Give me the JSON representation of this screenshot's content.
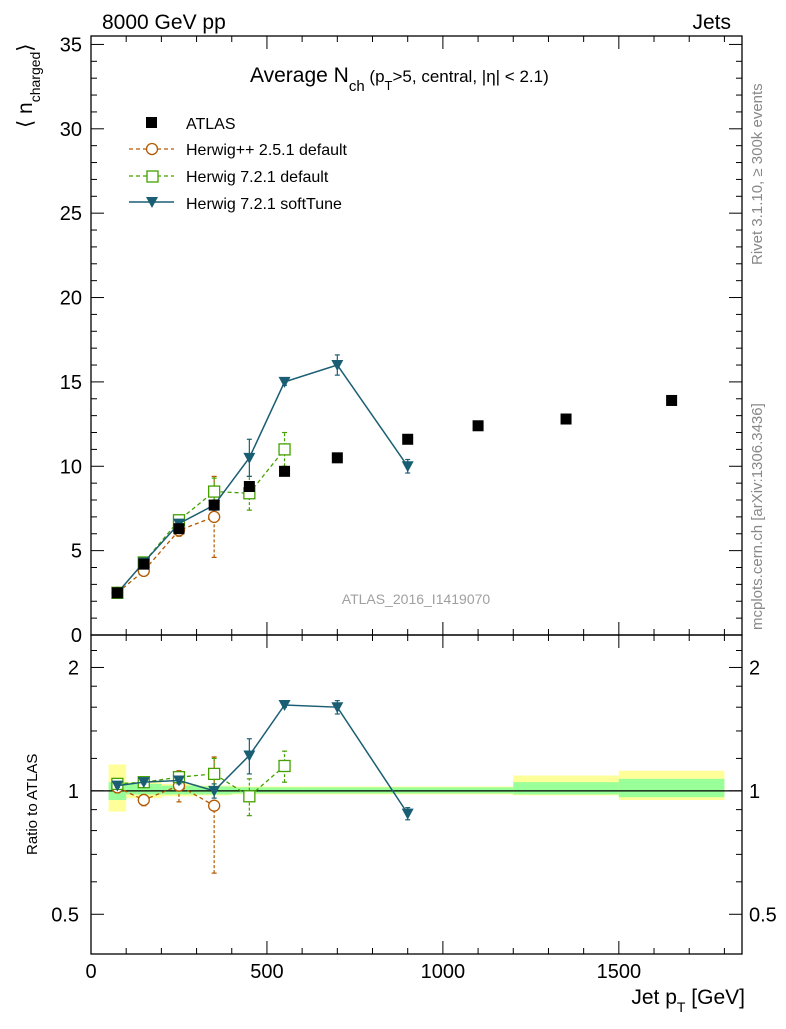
{
  "header": {
    "left": "8000 GeV pp",
    "right": "Jets"
  },
  "side": {
    "rivet": "Rivet 3.1.10, ≥ 300k events",
    "mcplots": "mcplots.cern.ch [arXiv:1306.3436]"
  },
  "plot": {
    "title_main": "Average N",
    "title_sub": "ch",
    "title_rest": " (p",
    "title_sub2": "T",
    "title_tail": ">5, central, |η| < 2.1)",
    "watermark": "ATLAS_2016_I1419070",
    "ylabel_main": "⟨ n",
    "ylabel_sub": "charged",
    "ylabel_close": "⟩",
    "ratio_ylabel": "Ratio to ATLAS",
    "xlabel_main": "Jet p",
    "xlabel_sub": "T",
    "xlabel_unit": " [GeV]"
  },
  "colors": {
    "data": "#000000",
    "herwigpp": "#b35900",
    "herwig721": "#44a000",
    "softtune": "#1a5e73",
    "band_inner": "#99ff99",
    "band_outer": "#ffff99"
  },
  "chart_data": [
    {
      "type": "scatter",
      "panel": "main",
      "title": "Average N_ch (p_T>5, central, |η| < 2.1)",
      "xlabel": "Jet p_T [GeV]",
      "ylabel": "⟨ n_charged ⟩",
      "xlim": [
        0,
        1850
      ],
      "ylim": [
        0,
        35.5
      ],
      "x_ticks": [
        0,
        500,
        1000,
        1500
      ],
      "y_ticks": [
        0,
        5,
        10,
        15,
        20,
        25,
        30,
        35
      ],
      "legend": "top-left",
      "series": [
        {
          "name": "ATLAS",
          "marker": "filled-square",
          "x": [
            75,
            150,
            250,
            350,
            450,
            550,
            700,
            900,
            1100,
            1350,
            1650
          ],
          "y": [
            2.5,
            4.2,
            6.3,
            7.7,
            8.8,
            9.7,
            10.5,
            11.6,
            12.4,
            12.8,
            13.9
          ]
        },
        {
          "name": "Herwig++ 2.5.1 default",
          "marker": "open-circle",
          "dashed": true,
          "x": [
            75,
            150,
            250,
            350
          ],
          "y": [
            2.5,
            3.8,
            6.2,
            7.0
          ],
          "err": [
            0.1,
            0.15,
            0.35,
            2.4
          ]
        },
        {
          "name": "Herwig 7.2.1 default",
          "marker": "open-square",
          "dashed": true,
          "x": [
            75,
            150,
            250,
            350,
            450,
            550
          ],
          "y": [
            2.5,
            4.3,
            6.8,
            8.5,
            8.4,
            11.0
          ],
          "err": [
            0.1,
            0.15,
            0.2,
            0.8,
            1.0,
            1.0
          ]
        },
        {
          "name": "Herwig 7.2.1 softTune",
          "marker": "down-triangle",
          "dashed": false,
          "x": [
            75,
            150,
            250,
            350,
            450,
            550,
            700,
            900
          ],
          "y": [
            2.5,
            4.3,
            6.6,
            7.7,
            10.5,
            15.0,
            16.0,
            10.0
          ],
          "err": [
            0.1,
            0.1,
            0.2,
            0.3,
            1.1,
            0.2,
            0.6,
            0.4
          ]
        }
      ]
    },
    {
      "type": "scatter",
      "panel": "ratio",
      "ylabel": "Ratio to ATLAS",
      "xlabel": "Jet p_T [GeV]",
      "xlim": [
        0,
        1850
      ],
      "ylim": [
        0.4,
        2.4
      ],
      "log_y": true,
      "y_ticks": [
        0.5,
        1,
        2
      ],
      "x_ticks": [
        0,
        500,
        1000,
        1500
      ],
      "bands": [
        {
          "x0": 50,
          "x1": 100,
          "inner": [
            0.95,
            1.05
          ],
          "outer": [
            0.89,
            1.16
          ]
        },
        {
          "x0": 100,
          "x1": 200,
          "inner": [
            0.98,
            1.04
          ],
          "outer": [
            0.96,
            1.05
          ]
        },
        {
          "x0": 200,
          "x1": 300,
          "inner": [
            0.98,
            1.03
          ],
          "outer": [
            0.97,
            1.04
          ]
        },
        {
          "x0": 300,
          "x1": 400,
          "inner": [
            0.98,
            1.025
          ],
          "outer": [
            0.975,
            1.03
          ]
        },
        {
          "x0": 400,
          "x1": 500,
          "inner": [
            0.985,
            1.02
          ],
          "outer": [
            0.98,
            1.025
          ]
        },
        {
          "x0": 500,
          "x1": 600,
          "inner": [
            0.985,
            1.02
          ],
          "outer": [
            0.98,
            1.025
          ]
        },
        {
          "x0": 600,
          "x1": 800,
          "inner": [
            0.985,
            1.02
          ],
          "outer": [
            0.98,
            1.025
          ]
        },
        {
          "x0": 800,
          "x1": 1000,
          "inner": [
            0.985,
            1.02
          ],
          "outer": [
            0.98,
            1.025
          ]
        },
        {
          "x0": 1000,
          "x1": 1200,
          "inner": [
            0.985,
            1.02
          ],
          "outer": [
            0.98,
            1.025
          ]
        },
        {
          "x0": 1200,
          "x1": 1500,
          "inner": [
            0.98,
            1.05
          ],
          "outer": [
            0.975,
            1.09
          ]
        },
        {
          "x0": 1500,
          "x1": 1800,
          "inner": [
            0.965,
            1.07
          ],
          "outer": [
            0.95,
            1.12
          ]
        }
      ],
      "series": [
        {
          "name": "Herwig++ 2.5.1 default",
          "marker": "open-circle",
          "dashed": true,
          "x": [
            75,
            150,
            250,
            350
          ],
          "y": [
            1.02,
            0.95,
            1.03,
            0.92
          ],
          "err": [
            0.03,
            0.03,
            0.09,
            0.29
          ]
        },
        {
          "name": "Herwig 7.2.1 default",
          "marker": "open-square",
          "dashed": true,
          "x": [
            75,
            150,
            250,
            350,
            450,
            550
          ],
          "y": [
            1.04,
            1.05,
            1.08,
            1.1,
            0.97,
            1.15
          ],
          "err": [
            0.02,
            0.02,
            0.03,
            0.1,
            0.1,
            0.1
          ]
        },
        {
          "name": "Herwig 7.2.1 softTune",
          "marker": "down-triangle",
          "dashed": false,
          "x": [
            75,
            150,
            250,
            350,
            450,
            550,
            700,
            900
          ],
          "y": [
            1.03,
            1.05,
            1.06,
            1.0,
            1.22,
            1.62,
            1.6,
            0.88
          ],
          "err": [
            0.01,
            0.01,
            0.02,
            0.04,
            0.12,
            0.02,
            0.06,
            0.03
          ]
        }
      ]
    }
  ]
}
